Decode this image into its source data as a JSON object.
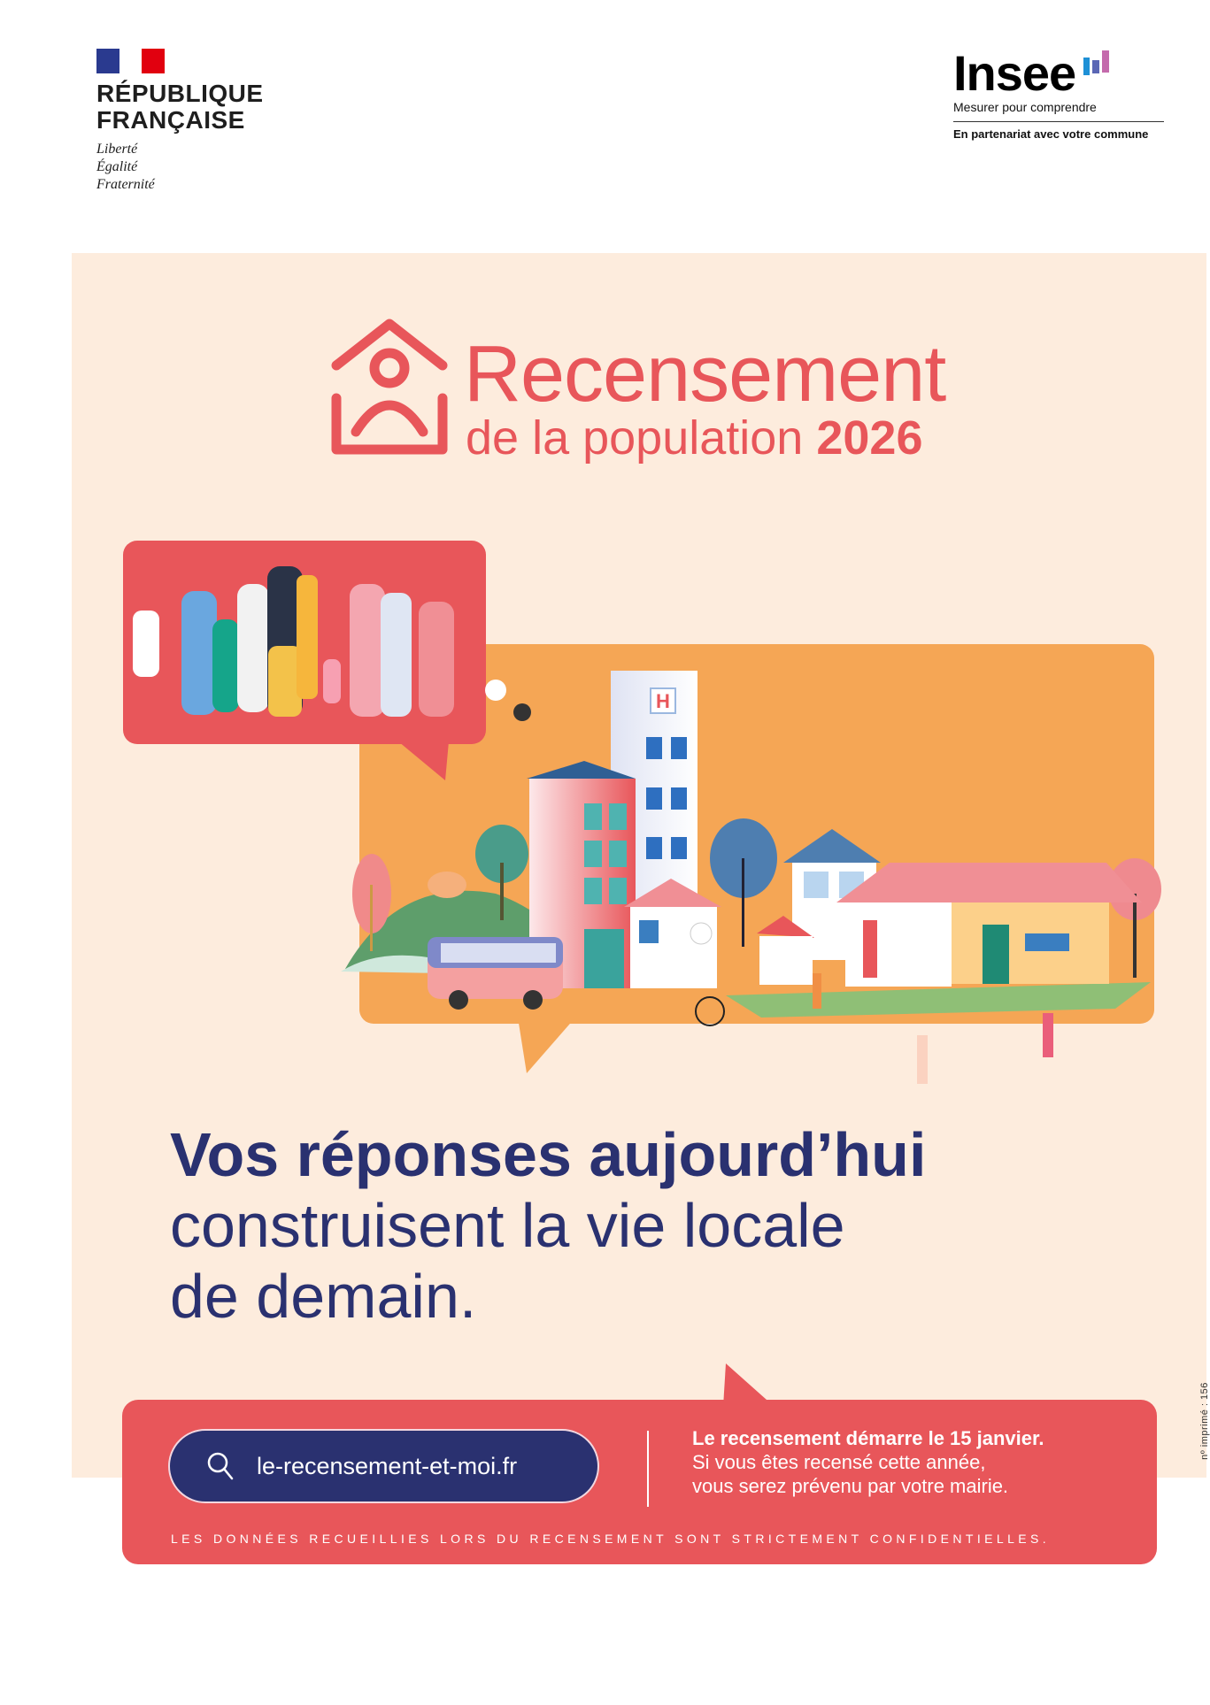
{
  "header": {
    "republique": {
      "line1": "RÉPUBLIQUE",
      "line2": "FRANÇAISE",
      "motto": [
        "Liberté",
        "Égalité",
        "Fraternité"
      ]
    },
    "insee": {
      "name": "Insee",
      "tagline": "Mesurer pour comprendre",
      "partner": "En partenariat avec votre commune"
    }
  },
  "title": {
    "main": "Recensement",
    "sub": "de la population",
    "year": "2026"
  },
  "headline": {
    "bold": "Vos réponses aujourd’hui",
    "line2": "construisent la vie locale",
    "line3": "de demain."
  },
  "footer": {
    "url": "le-recensement-et-moi.fr",
    "info_bold": "Le recensement démarre le 15 janvier.",
    "info_line2": "Si vous êtes recensé cette année,",
    "info_line3": "vous serez prévenu par votre mairie.",
    "confidential": "LES DONNÉES RECUEILLIES LORS DU RECENSEMENT SONT STRICTEMENT CONFIDENTIELLES.",
    "print_number": "nº imprimé : 156"
  },
  "icons": {
    "title": "house-person-icon",
    "url": "search-icon"
  },
  "colors": {
    "red": "#e8565a",
    "orange": "#f5a655",
    "navy": "#2a3170",
    "beige": "#fdecdd"
  }
}
